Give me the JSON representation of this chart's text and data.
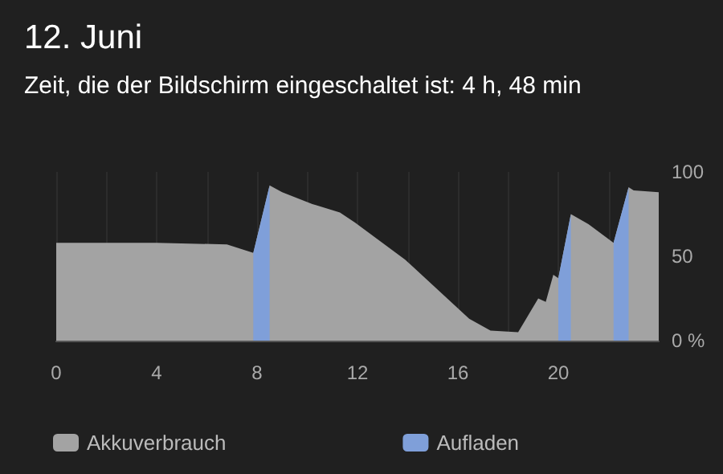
{
  "chart_data": {
    "type": "area",
    "title": "12. Juni",
    "subtitle": "Zeit, die der Bildschirm eingeschaltet ist: 4 h, 48 min",
    "xlim": [
      0,
      24
    ],
    "xticks": [
      0,
      {
        "value": 2,
        "label": null
      },
      4,
      {
        "value": 6,
        "label": null
      },
      8,
      {
        "value": 10,
        "label": null
      },
      12,
      {
        "value": 14,
        "label": null
      },
      16,
      {
        "value": 18,
        "label": null
      },
      20,
      {
        "value": 22,
        "label": null
      }
    ],
    "ylim": [
      0,
      100
    ],
    "yticks": [
      {
        "value": 0,
        "label": "0 %"
      },
      50,
      100
    ],
    "grid": "x",
    "legend": "bottom",
    "series": [
      {
        "name": "Akkuverbrauch",
        "color": "#a3a3a3",
        "x": [
          0,
          4,
          6.8,
          7.85,
          8.5,
          9.0,
          10.2,
          11.3,
          11.9,
          13.9,
          16.45,
          17.3,
          18.4,
          19.2,
          19.5,
          19.8,
          20.0,
          20.5,
          21.2,
          22.2,
          22.8,
          23.0,
          24
        ],
        "values": [
          58,
          58,
          57,
          52,
          92,
          88,
          81,
          76,
          70,
          48,
          13,
          6,
          5,
          25,
          23,
          39,
          37,
          75,
          69,
          58,
          91,
          89,
          88
        ]
      },
      {
        "name": "Aufladen",
        "color": "#7f9fd9",
        "x": [
          7.85,
          8.5,
          8.6,
          20.0,
          20.5,
          20.6,
          22.2,
          22.8
        ],
        "values": [
          52,
          92,
          null,
          37,
          75,
          null,
          58,
          91
        ]
      }
    ]
  }
}
